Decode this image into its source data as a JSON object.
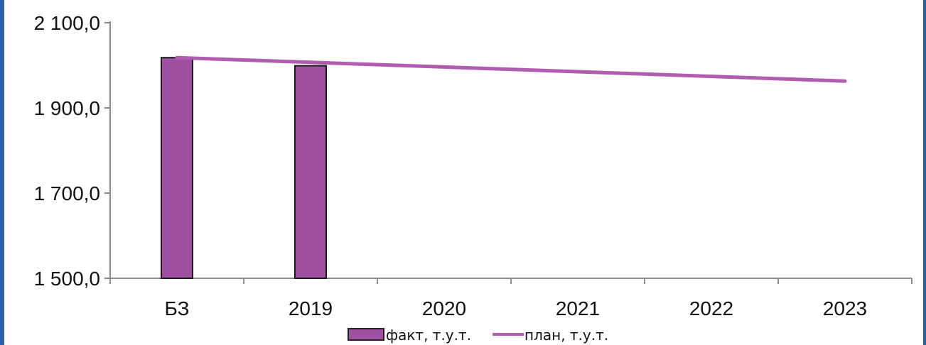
{
  "chart_data": {
    "type": "bar",
    "categories": [
      "БЗ",
      "2019",
      "2020",
      "2021",
      "2022",
      "2023"
    ],
    "series": [
      {
        "name": "факт, т.у.т.",
        "type": "bar",
        "color": "#a050a0",
        "values": [
          2018.0,
          1999.0,
          null,
          null,
          null,
          null
        ]
      },
      {
        "name": "план, т.у.т.",
        "type": "line",
        "color": "#b05cb0",
        "values": [
          2018.0,
          2007.0,
          1996.0,
          1985.0,
          1974.0,
          1963.0
        ]
      }
    ],
    "ylim": [
      1500,
      2100
    ],
    "yticks": [
      1500,
      1700,
      1900,
      2100
    ],
    "ytick_labels": [
      "1 500,0",
      "1 700,0",
      "1 900,0",
      "2 100,0"
    ],
    "grid": false,
    "legend_position": "bottom-center",
    "title": "",
    "xlabel": "",
    "ylabel": ""
  }
}
